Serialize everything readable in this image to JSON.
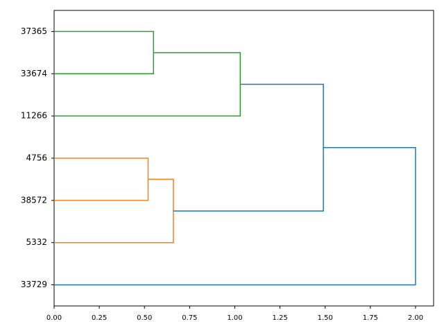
{
  "chart_data": {
    "type": "dendrogram",
    "orientation": "horizontal",
    "leaves": [
      "37365",
      "33674",
      "11266",
      "4756",
      "38572",
      "5332",
      "33729"
    ],
    "merges": [
      {
        "pair": [
          0,
          1
        ],
        "distance": 0.55,
        "color": "#2ca02c"
      },
      {
        "pair": [
          7,
          2
        ],
        "distance": 1.03,
        "color": "#2ca02c"
      },
      {
        "pair": [
          3,
          4
        ],
        "distance": 0.52,
        "color": "#ff7f0e"
      },
      {
        "pair": [
          9,
          5
        ],
        "distance": 0.66,
        "color": "#ff7f0e"
      },
      {
        "pair": [
          8,
          10
        ],
        "distance": 1.49,
        "color": "#1f77b4"
      },
      {
        "pair": [
          11,
          6
        ],
        "distance": 2.0,
        "color": "#1f77b4"
      }
    ],
    "xlim": [
      0,
      2.1
    ],
    "xticks": [
      {
        "value": 0,
        "label": "0.00"
      },
      {
        "value": 0.25,
        "label": "0.25"
      },
      {
        "value": 0.5,
        "label": "0.50"
      },
      {
        "value": 0.75,
        "label": "0.75"
      },
      {
        "value": 1.0,
        "label": "1.00"
      },
      {
        "value": 1.25,
        "label": "1.25"
      },
      {
        "value": 1.5,
        "label": "1.50"
      },
      {
        "value": 1.75,
        "label": "1.75"
      },
      {
        "value": 2.0,
        "label": "2.00"
      }
    ],
    "grid": false
  }
}
